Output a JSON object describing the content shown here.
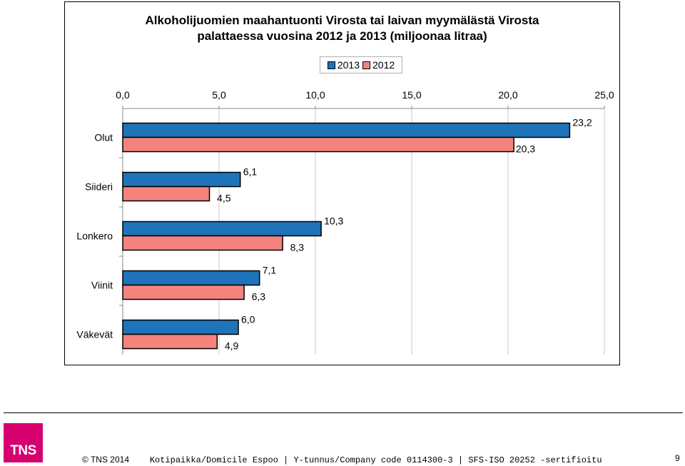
{
  "chart_data": {
    "type": "bar",
    "orientation": "horizontal",
    "title_line1": "Alkoholijuomien maahantuonti Virosta tai laivan myymälästä Virosta",
    "title_line2": "palattaessa vuosina 2012 ja 2013 (miljoonaa litraa)",
    "categories": [
      "Olut",
      "Siideri",
      "Lonkero",
      "Viinit",
      "Väkevät"
    ],
    "series": [
      {
        "name": "2013",
        "color": "#1f73b8",
        "values": [
          23.2,
          6.1,
          10.3,
          7.1,
          6.0
        ],
        "labels": [
          "23,2",
          "6,1",
          "10,3",
          "7,1",
          "6,0"
        ]
      },
      {
        "name": "2012",
        "color": "#f4837d",
        "values": [
          20.3,
          4.5,
          8.3,
          6.3,
          4.9
        ],
        "labels": [
          "20,3",
          "4,5",
          "8,3",
          "6,3",
          "4,9"
        ]
      }
    ],
    "xlim": [
      0,
      25
    ],
    "xticks": [
      "0,0",
      "5,0",
      "10,0",
      "15,0",
      "20,0",
      "25,0"
    ],
    "axis_position": "top",
    "legend_position": "top-center",
    "grid": true
  },
  "footer": {
    "logo_text": "TNS",
    "copyright": "© TNS 2014",
    "address": "Kotipaikka/Domicile Espoo | Y-tunnus/Company code 0114300-3 | SFS-ISO 20252 -sertifioitu",
    "page_number": "9"
  }
}
